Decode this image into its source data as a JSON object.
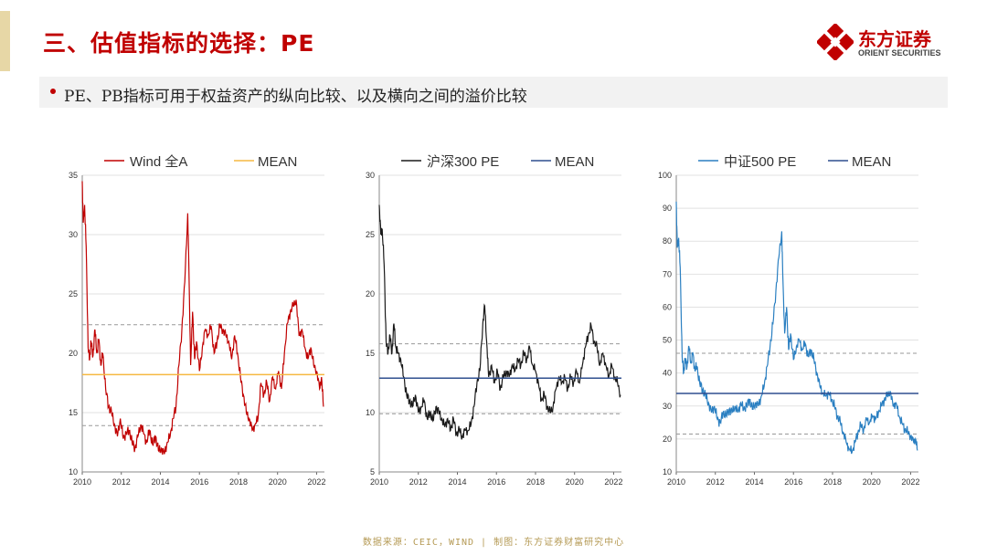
{
  "slide": {
    "title": "三、估值指标的选择：PE",
    "bullet": "PE、PB指标可用于权益资产的纵向比较、以及横向之间的溢价比较",
    "footer": "数据来源：CEIC，WIND  | 制图：东方证券财富研究中心",
    "logo": {
      "name": "东方证券",
      "sub": "ORIENT SECURITIES"
    },
    "colors": {
      "title": "#c00000",
      "accent_bar": "#e7d7a6",
      "band": "#f2f2f2"
    }
  },
  "chart_data": [
    {
      "type": "line",
      "id": "wind",
      "color": "#c00000",
      "mean_color": "#f5b942",
      "legend": [
        "Wind 全A",
        "MEAN"
      ],
      "ylim": [
        10,
        35
      ],
      "yticks": [
        10,
        15,
        20,
        25,
        30,
        35
      ],
      "xlim": [
        2010,
        2022.4
      ],
      "xticks": [
        2010,
        2012,
        2014,
        2016,
        2018,
        2020,
        2022
      ],
      "mean": 18.2,
      "bands": [
        13.9,
        22.4
      ],
      "x": [
        2010.0,
        2010.05,
        2010.12,
        2010.2,
        2010.3,
        2010.38,
        2010.45,
        2010.55,
        2010.65,
        2010.75,
        2010.85,
        2010.95,
        2011.05,
        2011.2,
        2011.35,
        2011.5,
        2011.65,
        2011.8,
        2011.95,
        2012.1,
        2012.25,
        2012.4,
        2012.55,
        2012.7,
        2012.85,
        2013.0,
        2013.15,
        2013.3,
        2013.45,
        2013.6,
        2013.75,
        2013.9,
        2014.05,
        2014.2,
        2014.35,
        2014.5,
        2014.65,
        2014.8,
        2014.95,
        2015.1,
        2015.25,
        2015.4,
        2015.45,
        2015.55,
        2015.65,
        2015.75,
        2015.85,
        2016.0,
        2016.15,
        2016.3,
        2016.45,
        2016.6,
        2016.75,
        2016.9,
        2017.05,
        2017.2,
        2017.35,
        2017.5,
        2017.65,
        2017.8,
        2017.95,
        2018.1,
        2018.25,
        2018.4,
        2018.55,
        2018.7,
        2018.85,
        2019.0,
        2019.15,
        2019.3,
        2019.45,
        2019.6,
        2019.75,
        2019.9,
        2020.05,
        2020.2,
        2020.35,
        2020.5,
        2020.65,
        2020.8,
        2020.95,
        2021.1,
        2021.25,
        2021.4,
        2021.55,
        2021.7,
        2021.85,
        2022.0,
        2022.15,
        2022.25,
        2022.35
      ],
      "y": [
        34.5,
        31.0,
        32.5,
        29.0,
        20.5,
        19.5,
        21.0,
        19.8,
        22.0,
        20.0,
        21.2,
        19.0,
        20.0,
        17.0,
        15.5,
        15.0,
        14.0,
        13.0,
        14.5,
        12.8,
        13.3,
        13.5,
        12.5,
        12.0,
        13.0,
        14.0,
        13.2,
        12.5,
        13.5,
        12.3,
        13.0,
        11.8,
        12.0,
        11.5,
        12.5,
        13.0,
        14.5,
        15.5,
        19.0,
        22.0,
        26.0,
        31.8,
        28.0,
        19.0,
        23.5,
        19.5,
        21.0,
        18.5,
        20.5,
        22.0,
        21.5,
        22.3,
        20.0,
        21.0,
        22.3,
        22.0,
        21.5,
        21.0,
        19.5,
        21.5,
        20.0,
        18.0,
        16.5,
        15.0,
        14.5,
        13.5,
        14.0,
        14.5,
        17.5,
        16.5,
        17.5,
        16.0,
        18.0,
        17.0,
        18.5,
        17.0,
        20.0,
        22.5,
        23.5,
        24.0,
        24.5,
        21.5,
        22.0,
        20.5,
        19.5,
        20.5,
        19.0,
        18.5,
        17.0,
        18.0,
        15.5
      ]
    },
    {
      "type": "line",
      "id": "hs300",
      "color": "#1a1a1a",
      "mean_color": "#2f4f8f",
      "legend": [
        "沪深300 PE",
        "MEAN"
      ],
      "ylim": [
        5,
        30
      ],
      "yticks": [
        5,
        10,
        15,
        20,
        25,
        30
      ],
      "xlim": [
        2010,
        2022.4
      ],
      "xticks": [
        2010,
        2012,
        2014,
        2016,
        2018,
        2020,
        2022
      ],
      "mean": 12.9,
      "bands": [
        9.9,
        15.8
      ],
      "x": [
        2010.0,
        2010.08,
        2010.15,
        2010.25,
        2010.35,
        2010.45,
        2010.55,
        2010.65,
        2010.75,
        2010.85,
        2010.95,
        2011.1,
        2011.25,
        2011.4,
        2011.55,
        2011.7,
        2011.85,
        2012.0,
        2012.15,
        2012.3,
        2012.45,
        2012.6,
        2012.75,
        2012.9,
        2013.05,
        2013.2,
        2013.35,
        2013.5,
        2013.65,
        2013.8,
        2013.95,
        2014.1,
        2014.25,
        2014.4,
        2014.55,
        2014.7,
        2014.85,
        2015.0,
        2015.15,
        2015.3,
        2015.4,
        2015.5,
        2015.6,
        2015.75,
        2015.9,
        2016.05,
        2016.2,
        2016.35,
        2016.5,
        2016.65,
        2016.8,
        2016.95,
        2017.1,
        2017.25,
        2017.4,
        2017.55,
        2017.7,
        2017.85,
        2018.0,
        2018.15,
        2018.3,
        2018.45,
        2018.6,
        2018.75,
        2018.9,
        2019.05,
        2019.2,
        2019.35,
        2019.5,
        2019.65,
        2019.8,
        2019.95,
        2020.1,
        2020.25,
        2020.4,
        2020.55,
        2020.7,
        2020.85,
        2021.0,
        2021.15,
        2021.3,
        2021.45,
        2021.6,
        2021.75,
        2021.9,
        2022.05,
        2022.2,
        2022.35
      ],
      "y": [
        27.5,
        25.0,
        25.5,
        22.5,
        16.0,
        15.0,
        16.5,
        15.0,
        17.5,
        15.5,
        15.0,
        14.5,
        13.0,
        11.5,
        11.0,
        10.5,
        11.5,
        10.0,
        10.5,
        11.0,
        9.5,
        10.0,
        9.3,
        10.5,
        10.0,
        9.5,
        8.8,
        9.5,
        8.5,
        9.5,
        8.2,
        8.5,
        8.0,
        8.5,
        8.5,
        9.0,
        10.5,
        12.5,
        13.5,
        17.5,
        19.0,
        16.0,
        13.0,
        14.0,
        12.5,
        13.5,
        12.0,
        13.0,
        13.5,
        13.0,
        14.0,
        13.5,
        14.5,
        14.0,
        15.0,
        14.5,
        15.5,
        14.0,
        13.5,
        12.5,
        11.0,
        11.5,
        10.5,
        10.0,
        10.5,
        12.0,
        13.0,
        12.5,
        13.0,
        12.0,
        13.0,
        12.5,
        13.5,
        12.5,
        14.0,
        15.5,
        16.5,
        17.3,
        16.0,
        15.5,
        14.0,
        15.0,
        14.0,
        13.0,
        14.0,
        13.0,
        12.5,
        11.5
      ]
    },
    {
      "type": "line",
      "id": "zz500",
      "color": "#2a7fc1",
      "mean_color": "#2f4f8f",
      "legend": [
        "中证500 PE",
        "MEAN"
      ],
      "ylim": [
        10,
        100
      ],
      "yticks": [
        10,
        20,
        30,
        40,
        50,
        60,
        70,
        80,
        90,
        100
      ],
      "xlim": [
        2010,
        2022.4
      ],
      "xticks": [
        2010,
        2012,
        2014,
        2016,
        2018,
        2020,
        2022
      ],
      "mean": 33.8,
      "bands": [
        21.5,
        46.0
      ],
      "x": [
        2010.0,
        2010.05,
        2010.12,
        2010.2,
        2010.3,
        2010.38,
        2010.45,
        2010.55,
        2010.65,
        2010.75,
        2010.85,
        2010.95,
        2011.05,
        2011.2,
        2011.35,
        2011.5,
        2011.65,
        2011.8,
        2011.95,
        2012.1,
        2012.25,
        2012.4,
        2012.55,
        2012.7,
        2012.85,
        2013.0,
        2013.15,
        2013.3,
        2013.45,
        2013.6,
        2013.75,
        2013.9,
        2014.05,
        2014.2,
        2014.35,
        2014.5,
        2014.65,
        2014.8,
        2014.95,
        2015.1,
        2015.25,
        2015.4,
        2015.45,
        2015.55,
        2015.65,
        2015.75,
        2015.85,
        2016.0,
        2016.15,
        2016.3,
        2016.45,
        2016.6,
        2016.75,
        2016.9,
        2017.05,
        2017.2,
        2017.35,
        2017.5,
        2017.65,
        2017.8,
        2017.95,
        2018.1,
        2018.25,
        2018.4,
        2018.55,
        2018.7,
        2018.85,
        2019.0,
        2019.15,
        2019.3,
        2019.45,
        2019.6,
        2019.75,
        2019.9,
        2020.05,
        2020.2,
        2020.35,
        2020.5,
        2020.65,
        2020.8,
        2020.95,
        2021.1,
        2021.25,
        2021.4,
        2021.55,
        2021.7,
        2021.85,
        2022.0,
        2022.15,
        2022.25,
        2022.35
      ],
      "y": [
        92.0,
        78.0,
        81.0,
        72.0,
        45.0,
        40.0,
        44.0,
        42.0,
        48.0,
        43.0,
        46.0,
        41.0,
        42.0,
        37.0,
        35.0,
        33.0,
        31.0,
        28.0,
        30.0,
        26.0,
        25.0,
        28.0,
        27.0,
        29.0,
        28.0,
        30.0,
        28.0,
        31.0,
        29.0,
        30.0,
        32.0,
        29.0,
        31.0,
        30.0,
        33.0,
        36.0,
        42.0,
        48.0,
        55.0,
        65.0,
        75.0,
        83.0,
        70.0,
        52.0,
        60.0,
        47.0,
        52.0,
        44.0,
        48.0,
        50.0,
        47.0,
        49.0,
        45.0,
        47.0,
        44.0,
        40.0,
        36.0,
        34.0,
        33.0,
        34.0,
        32.0,
        30.0,
        27.0,
        25.0,
        22.0,
        19.0,
        17.0,
        16.0,
        19.0,
        22.0,
        24.0,
        23.0,
        26.0,
        25.0,
        27.0,
        26.0,
        28.0,
        30.0,
        32.0,
        33.0,
        34.5,
        30.0,
        31.0,
        27.0,
        25.0,
        23.0,
        22.0,
        21.0,
        19.0,
        20.0,
        16.5
      ]
    }
  ]
}
